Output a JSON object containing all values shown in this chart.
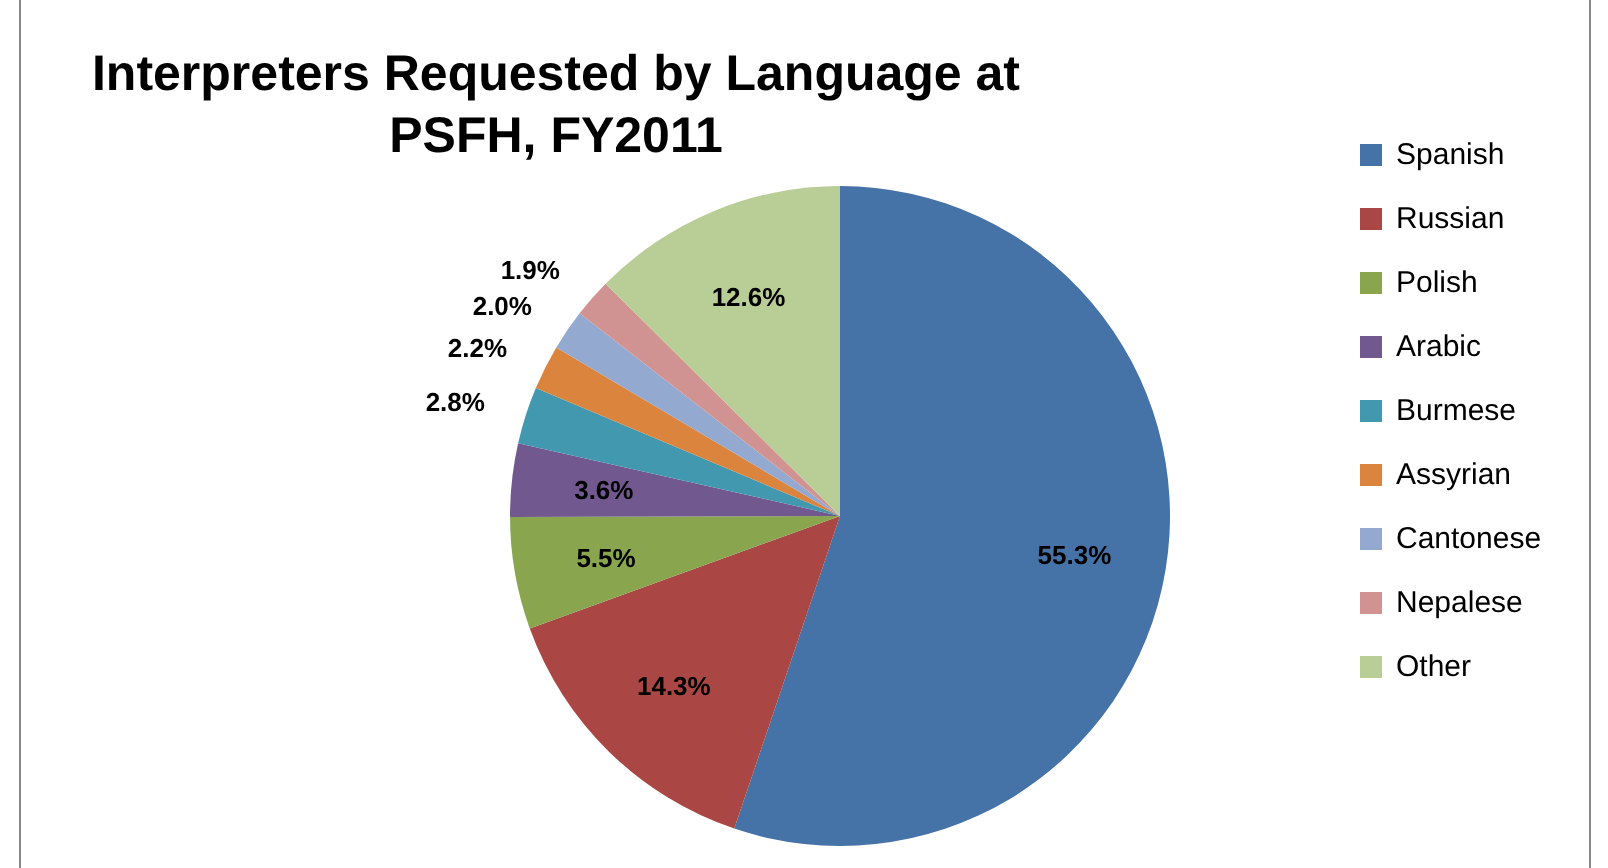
{
  "chart_data": {
    "type": "pie",
    "title": "Interpreters Requested by Language at PSFH, FY2011",
    "categories": [
      "Spanish",
      "Russian",
      "Polish",
      "Arabic",
      "Burmese",
      "Assyrian",
      "Cantonese",
      "Nepalese",
      "Other"
    ],
    "values": [
      55.3,
      14.3,
      5.5,
      3.6,
      2.8,
      2.2,
      2.0,
      1.9,
      12.6
    ],
    "colors": [
      "#4572a7",
      "#aa4643",
      "#89a54e",
      "#71588f",
      "#4198af",
      "#db843d",
      "#93a9cf",
      "#d19392",
      "#b9cd96"
    ],
    "value_labels": [
      "55.3%",
      "14.3%",
      "5.5%",
      "3.6%",
      "2.8%",
      "2.2%",
      "2.0%",
      "1.9%",
      "12.6%"
    ],
    "legend": "right"
  }
}
